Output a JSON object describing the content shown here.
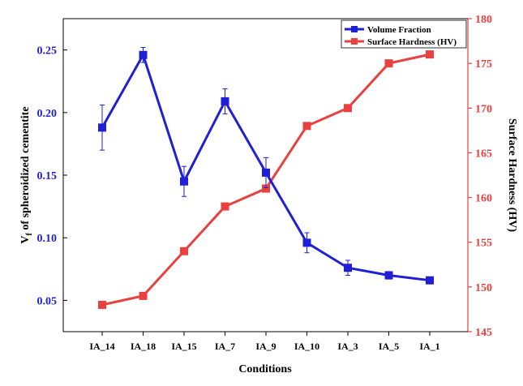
{
  "chart_data": {
    "type": "line",
    "categories": [
      "IA_14",
      "IA_18",
      "IA_15",
      "IA_7",
      "IA_9",
      "IA_10",
      "IA_3",
      "IA_5",
      "IA_1"
    ],
    "xlabel": "Conditions",
    "ylabel_left": "V",
    "ylabel_left_sub": "f",
    "ylabel_left_rest": " of spheroidized cementite",
    "ylabel_right": "Surface Hardness (HV)",
    "ylim_left": [
      0.025,
      0.275
    ],
    "yticks_left": [
      "0.05",
      "0.10",
      "0.15",
      "0.20",
      "0.25"
    ],
    "ylim_right": [
      145,
      180
    ],
    "yticks_right": [
      "145",
      "150",
      "155",
      "160",
      "165",
      "170",
      "175",
      "180"
    ],
    "legend_position": "top-right",
    "grid": false,
    "series": [
      {
        "name": "Volume Fraction",
        "axis": "left",
        "color": "#1f1fd6",
        "marker": "square",
        "values": [
          0.188,
          0.246,
          0.145,
          0.209,
          0.152,
          0.096,
          0.076,
          0.07,
          0.066
        ],
        "errors": [
          0.018,
          0.006,
          0.012,
          0.01,
          0.012,
          0.008,
          0.006,
          0.003,
          0.002
        ]
      },
      {
        "name": "Surface Hardness (HV)",
        "axis": "right",
        "color": "#e8413f",
        "marker": "square",
        "values": [
          148,
          149,
          154,
          159,
          161,
          168,
          170,
          175,
          176
        ]
      }
    ]
  }
}
